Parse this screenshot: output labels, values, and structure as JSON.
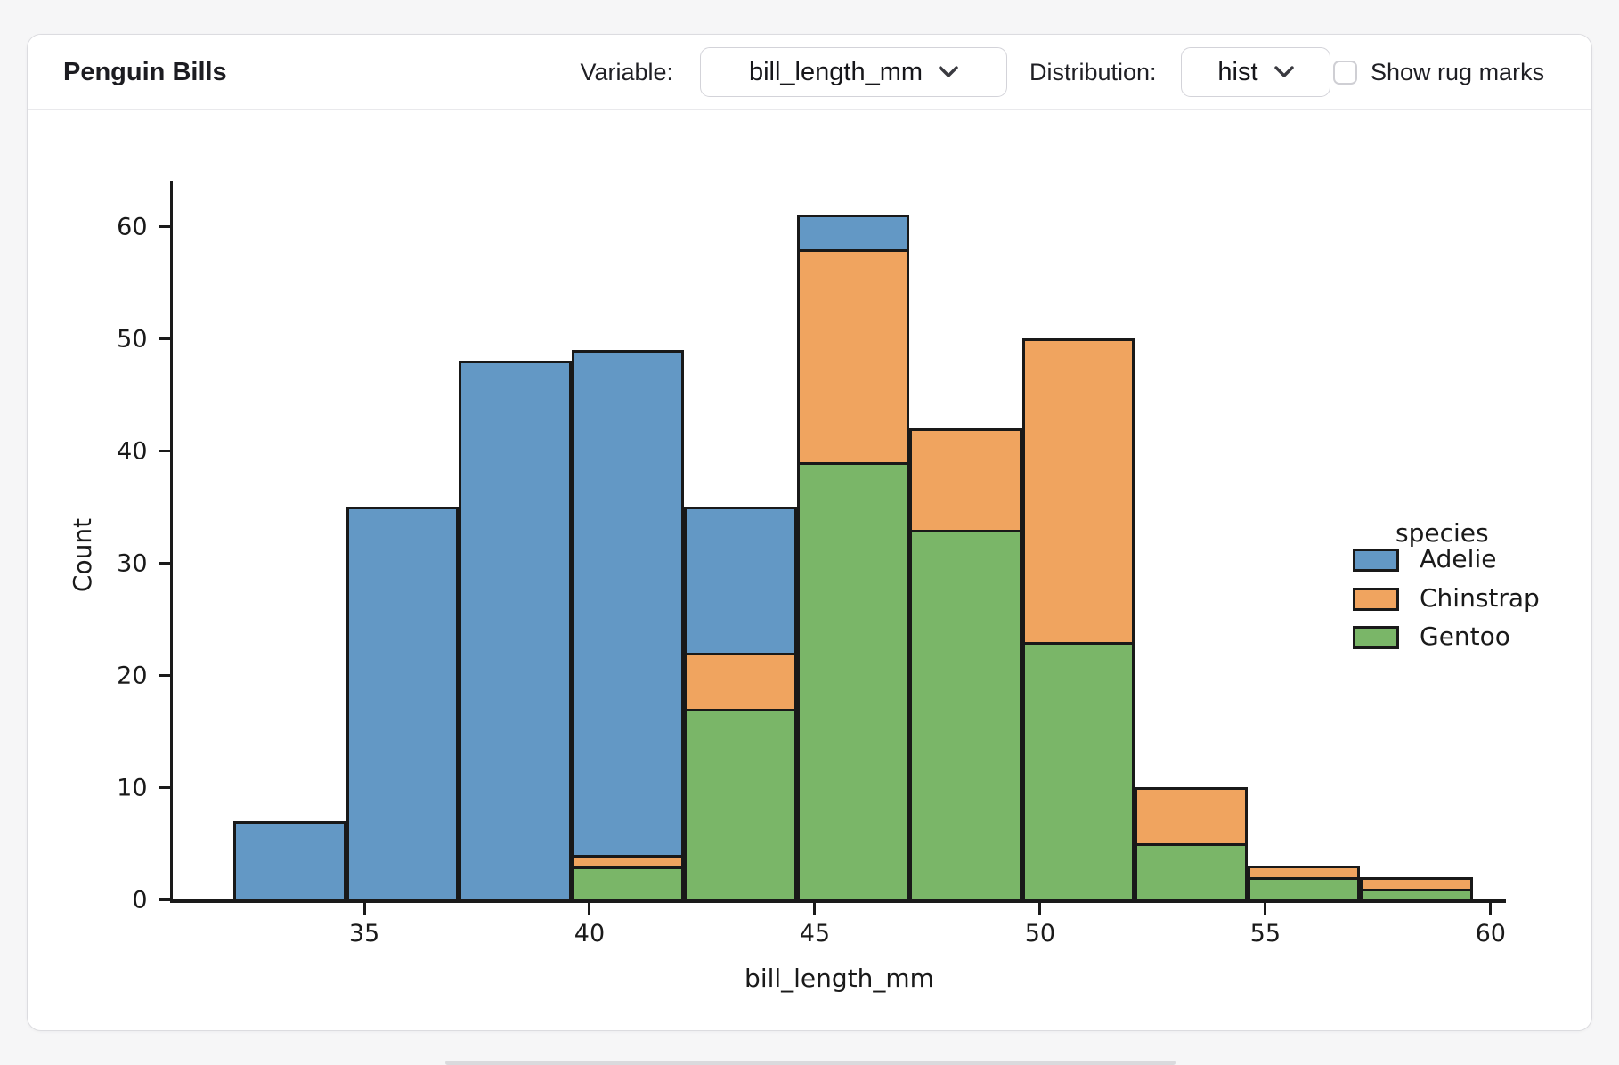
{
  "header": {
    "title": "Penguin Bills",
    "variable_label": "Variable:",
    "variable_value": "bill_length_mm",
    "distribution_label": "Distribution:",
    "distribution_value": "hist",
    "rug_label": "Show rug marks",
    "rug_checked": false
  },
  "chart_data": {
    "type": "bar",
    "subtype": "stacked-histogram",
    "xlabel": "bill_length_mm",
    "ylabel": "Count",
    "legend_title": "species",
    "legend_position": "right",
    "grid": false,
    "bin_edges": [
      32.1,
      34.6,
      37.1,
      39.6,
      42.1,
      44.6,
      47.1,
      49.6,
      52.1,
      54.6,
      57.1,
      59.6
    ],
    "series": [
      {
        "name": "Adelie",
        "color": "#6398c5",
        "values": [
          7,
          35,
          48,
          45,
          13,
          3,
          0,
          0,
          0,
          0,
          0
        ]
      },
      {
        "name": "Chinstrap",
        "color": "#f0a45f",
        "values": [
          0,
          0,
          0,
          1,
          5,
          19,
          9,
          27,
          5,
          1,
          1
        ]
      },
      {
        "name": "Gentoo",
        "color": "#7ab668",
        "values": [
          0,
          0,
          0,
          3,
          17,
          39,
          33,
          23,
          5,
          2,
          1
        ]
      }
    ],
    "stack_order_bottom_to_top": [
      "Gentoo",
      "Chinstrap",
      "Adelie"
    ],
    "bin_totals": [
      7,
      35,
      48,
      49,
      35,
      61,
      42,
      50,
      10,
      3,
      2
    ],
    "x_ticks": [
      35,
      40,
      45,
      50,
      55,
      60
    ],
    "y_ticks": [
      0,
      10,
      20,
      30,
      40,
      50,
      60
    ],
    "xlim": [
      30.75,
      60.34
    ],
    "ylim": [
      0,
      64.05
    ],
    "edge_color": "#191919"
  }
}
